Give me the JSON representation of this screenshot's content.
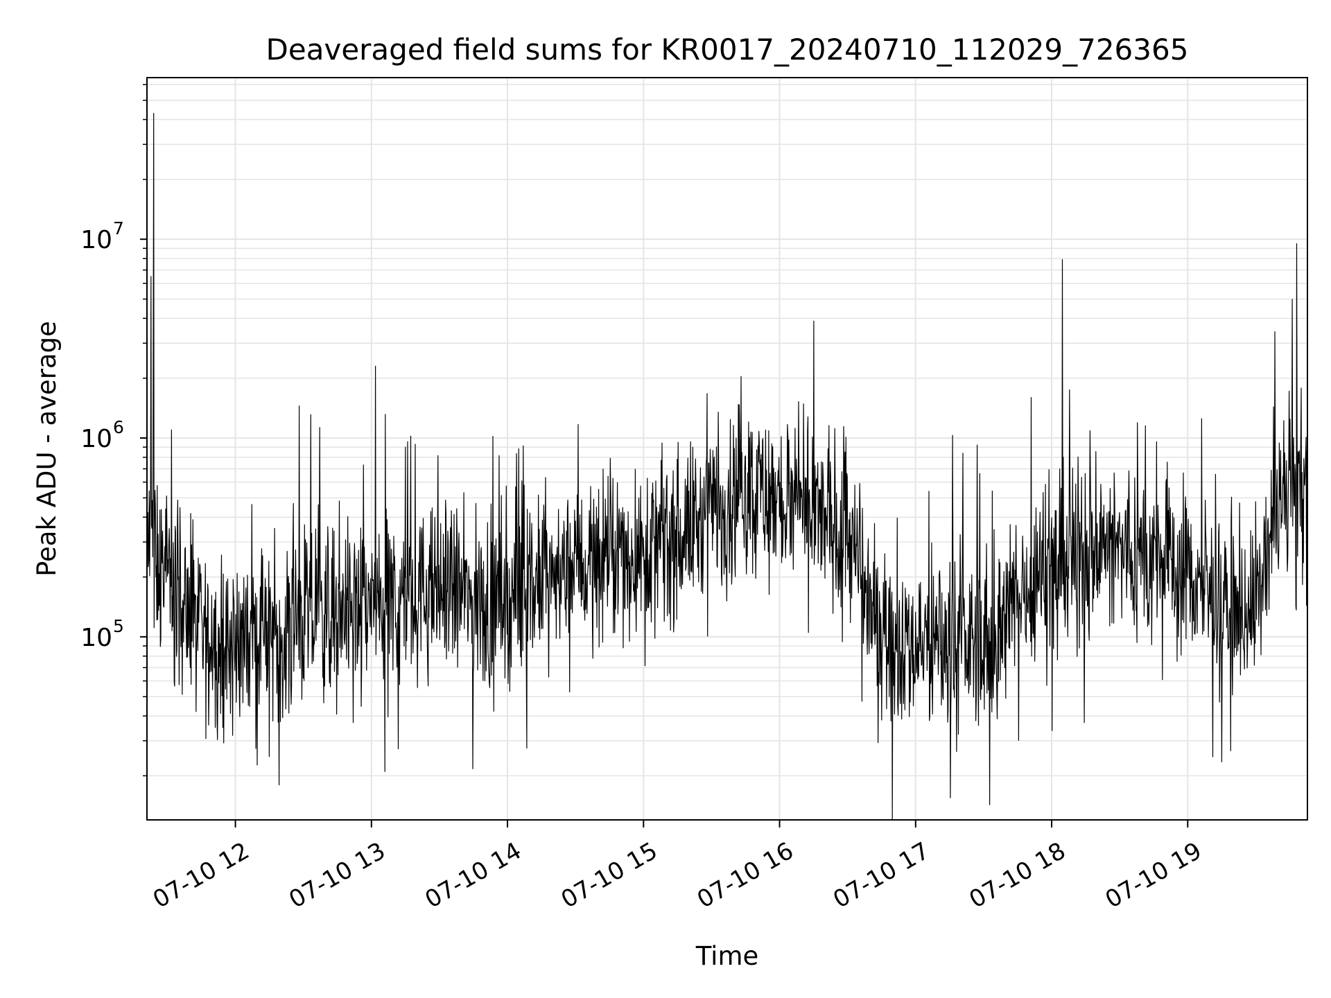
{
  "chart_data": {
    "type": "line",
    "title": "Deaveraged field sums for KR0017_20240710_112029_726365",
    "xlabel": "Time",
    "ylabel": "Peak ADU - average",
    "yscale": "log",
    "ylim": [
      12000,
      65000000
    ],
    "xlim_hours": [
      11.35,
      19.88
    ],
    "grid": true,
    "grid_color": "#e5e5e5",
    "line_color": "#000000",
    "x_ticks": [
      {
        "hour": 12,
        "label": "07-10 12"
      },
      {
        "hour": 13,
        "label": "07-10 13"
      },
      {
        "hour": 14,
        "label": "07-10 14"
      },
      {
        "hour": 15,
        "label": "07-10 15"
      },
      {
        "hour": 16,
        "label": "07-10 16"
      },
      {
        "hour": 17,
        "label": "07-10 17"
      },
      {
        "hour": 18,
        "label": "07-10 18"
      },
      {
        "hour": 19,
        "label": "07-10 19"
      }
    ],
    "y_ticks": [
      {
        "value": 100000,
        "base": "10",
        "exp": "5"
      },
      {
        "value": 1000000,
        "base": "10",
        "exp": "6"
      },
      {
        "value": 10000000,
        "base": "10",
        "exp": "7"
      }
    ],
    "series": [
      {
        "baseline": [
          [
            11.35,
            300000
          ],
          [
            11.45,
            230000
          ],
          [
            11.55,
            160000
          ],
          [
            11.7,
            110000
          ],
          [
            11.85,
            90000
          ],
          [
            12.0,
            95000
          ],
          [
            12.2,
            105000
          ],
          [
            12.4,
            110000
          ],
          [
            12.6,
            130000
          ],
          [
            12.8,
            140000
          ],
          [
            13.0,
            150000
          ],
          [
            13.2,
            150000
          ],
          [
            13.4,
            165000
          ],
          [
            13.6,
            175000
          ],
          [
            13.8,
            140000
          ],
          [
            14.0,
            150000
          ],
          [
            14.2,
            180000
          ],
          [
            14.4,
            210000
          ],
          [
            14.6,
            240000
          ],
          [
            14.8,
            250000
          ],
          [
            15.0,
            270000
          ],
          [
            15.2,
            300000
          ],
          [
            15.4,
            380000
          ],
          [
            15.6,
            480000
          ],
          [
            15.8,
            560000
          ],
          [
            16.0,
            480000
          ],
          [
            16.2,
            400000
          ],
          [
            16.4,
            380000
          ],
          [
            16.5,
            350000
          ],
          [
            16.6,
            180000
          ],
          [
            16.8,
            100000
          ],
          [
            17.0,
            90000
          ],
          [
            17.2,
            95000
          ],
          [
            17.4,
            90000
          ],
          [
            17.6,
            95000
          ],
          [
            17.8,
            180000
          ],
          [
            18.0,
            230000
          ],
          [
            18.2,
            260000
          ],
          [
            18.4,
            280000
          ],
          [
            18.6,
            260000
          ],
          [
            18.8,
            240000
          ],
          [
            19.0,
            210000
          ],
          [
            19.2,
            150000
          ],
          [
            19.4,
            130000
          ],
          [
            19.55,
            180000
          ],
          [
            19.65,
            420000
          ],
          [
            19.75,
            500000
          ],
          [
            19.88,
            560000
          ]
        ],
        "spikes": [
          [
            11.4,
            43000000
          ],
          [
            11.38,
            6500000
          ],
          [
            11.53,
            1100000
          ],
          [
            12.25,
            25000
          ],
          [
            12.32,
            18000
          ],
          [
            12.47,
            1450000
          ],
          [
            12.62,
            1130000
          ],
          [
            13.03,
            2300000
          ],
          [
            13.1,
            21000
          ],
          [
            13.25,
            900000
          ],
          [
            15.55,
            1350000
          ],
          [
            16.48,
            850000
          ],
          [
            17.85,
            1600000
          ],
          [
            18.08,
            7900000
          ],
          [
            18.24,
            37000
          ],
          [
            19.8,
            9500000
          ]
        ]
      }
    ]
  }
}
